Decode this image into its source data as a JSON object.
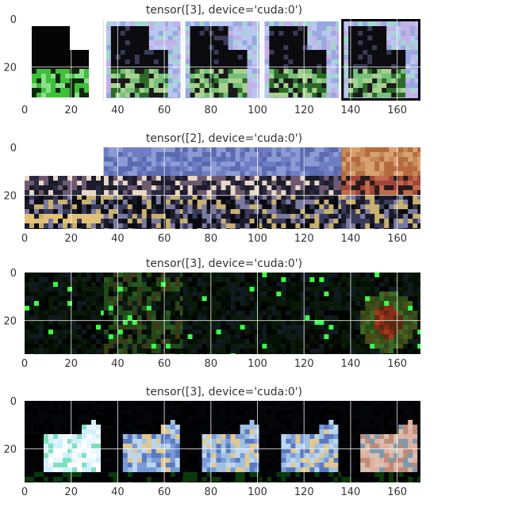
{
  "chart_data": [
    {
      "type": "image",
      "title": "tensor([3], device='cuda:0')",
      "xticks": [
        0,
        20,
        40,
        60,
        80,
        100,
        120,
        140,
        160
      ],
      "yticks": [
        0,
        20
      ],
      "xlim": [
        0,
        170
      ],
      "ylim": [
        0,
        34
      ],
      "grid": true,
      "tiles": [
        {
          "scene": "cat",
          "variant": "original",
          "border": "white"
        },
        {
          "scene": "cat",
          "variant": "recon",
          "border": "white"
        },
        {
          "scene": "cat",
          "variant": "recon",
          "border": "white"
        },
        {
          "scene": "cat",
          "variant": "recon",
          "border": "white"
        },
        {
          "scene": "cat",
          "variant": "recon",
          "border": "black"
        }
      ]
    },
    {
      "type": "image",
      "title": "tensor([2], device='cuda:0')",
      "xticks": [
        0,
        20,
        40,
        60,
        80,
        100,
        120,
        140,
        160
      ],
      "yticks": [
        0,
        20
      ],
      "xlim": [
        0,
        170
      ],
      "ylim": [
        0,
        34
      ],
      "grid": true,
      "tiles": [
        {
          "scene": "bird",
          "variant": "original"
        },
        {
          "scene": "bird",
          "variant": "recon"
        },
        {
          "scene": "bird",
          "variant": "recon"
        },
        {
          "scene": "bird",
          "variant": "recon"
        },
        {
          "scene": "bird",
          "variant": "warm"
        }
      ]
    },
    {
      "type": "image",
      "title": "tensor([3], device='cuda:0')",
      "xticks": [
        0,
        20,
        40,
        60,
        80,
        100,
        120,
        140,
        160
      ],
      "yticks": [
        0,
        20
      ],
      "xlim": [
        0,
        170
      ],
      "ylim": [
        0,
        34
      ],
      "grid": true,
      "tiles": [
        {
          "scene": "dark",
          "variant": "original"
        },
        {
          "scene": "dark",
          "variant": "noisy"
        },
        {
          "scene": "dark",
          "variant": "recon"
        },
        {
          "scene": "dark",
          "variant": "recon"
        },
        {
          "scene": "dark",
          "variant": "blob"
        }
      ]
    },
    {
      "type": "image",
      "title": "tensor([3], device='cuda:0')",
      "xticks": [
        0,
        20,
        40,
        60,
        80,
        100,
        120,
        140,
        160
      ],
      "yticks": [
        0,
        20
      ],
      "xlim": [
        0,
        170
      ],
      "ylim": [
        0,
        34
      ],
      "grid": true,
      "tiles": [
        {
          "scene": "animal",
          "variant": "original"
        },
        {
          "scene": "animal",
          "variant": "recon"
        },
        {
          "scene": "animal",
          "variant": "recon"
        },
        {
          "scene": "animal",
          "variant": "recon"
        },
        {
          "scene": "animal",
          "variant": "warm"
        }
      ]
    }
  ]
}
